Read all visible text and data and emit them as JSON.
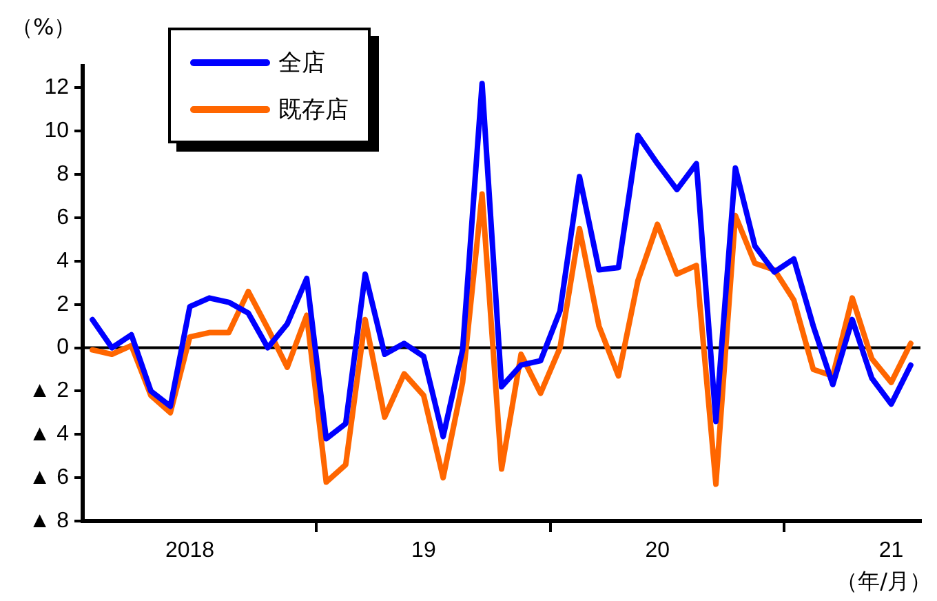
{
  "chart_data": {
    "type": "line",
    "xlabel": "（年/月）",
    "ylabel": "（%）",
    "categories": [
      null,
      null,
      null,
      null,
      null,
      "2018",
      null,
      null,
      null,
      null,
      null,
      null,
      null,
      null,
      null,
      null,
      null,
      "19",
      null,
      null,
      null,
      null,
      null,
      null,
      null,
      null,
      null,
      null,
      null,
      "20",
      null,
      null,
      null,
      null,
      null,
      null,
      null,
      null,
      null,
      null,
      null,
      "21",
      null
    ],
    "series": [
      {
        "name": "全店",
        "color": "#0000ff",
        "values": [
          1.3,
          0.0,
          0.6,
          -2.0,
          -2.7,
          1.9,
          2.3,
          2.1,
          1.6,
          0.0,
          1.1,
          3.2,
          -4.2,
          -3.5,
          3.4,
          -0.3,
          0.2,
          -0.4,
          -4.1,
          -0.1,
          12.2,
          -1.8,
          -0.8,
          -0.6,
          1.7,
          7.9,
          3.6,
          3.7,
          9.8,
          8.5,
          7.3,
          8.5,
          -3.4,
          8.3,
          4.7,
          3.5,
          4.1,
          1.0,
          -1.7,
          1.3,
          -1.4,
          -2.6,
          -0.8
        ]
      },
      {
        "name": "既存店",
        "color": "#ff6600",
        "values": [
          -0.1,
          -0.3,
          0.1,
          -2.2,
          -3.0,
          0.5,
          0.7,
          0.7,
          2.6,
          0.9,
          -0.9,
          1.5,
          -6.2,
          -5.4,
          1.3,
          -3.2,
          -1.2,
          -2.2,
          -6.0,
          -1.6,
          7.1,
          -5.6,
          -0.3,
          -2.1,
          0.0,
          5.5,
          1.0,
          -1.3,
          3.1,
          5.7,
          3.4,
          3.8,
          -6.3,
          6.1,
          3.9,
          3.6,
          2.2,
          -1.0,
          -1.3,
          2.3,
          -0.5,
          -1.6,
          0.2
        ]
      }
    ],
    "ylim": [
      -8,
      13
    ],
    "yticks": [
      {
        "value": -8,
        "label": "▲ 8"
      },
      {
        "value": -6,
        "label": "▲ 6"
      },
      {
        "value": -4,
        "label": "▲ 4"
      },
      {
        "value": -2,
        "label": "▲ 2"
      },
      0,
      2,
      4,
      6,
      8,
      10,
      12
    ],
    "ref_lines": [
      {
        "axis": "y",
        "value": 0,
        "color": "#000000"
      }
    ],
    "grid": false,
    "legend": "top left",
    "marker": "none",
    "line_style": "solid"
  }
}
